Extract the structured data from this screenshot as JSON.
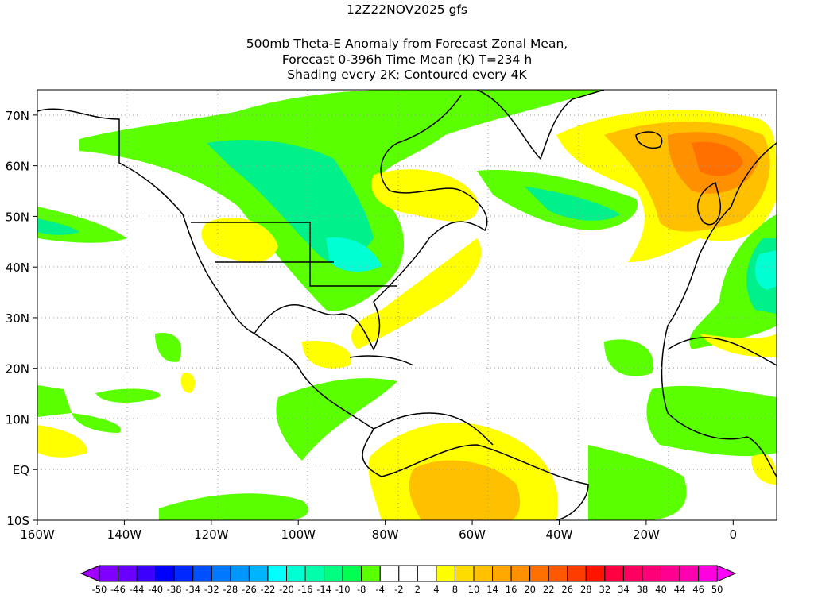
{
  "title": {
    "line1": "12Z22NOV2025 gfs",
    "line2": "500mb Theta-E Anomaly from Forecast Zonal Mean,",
    "line3": "Forecast 0-396h Time Mean (K) T=234 h",
    "line4": "Shading every 2K; Contoured every 4K"
  },
  "axes": {
    "lat_labels": [
      "70N",
      "60N",
      "50N",
      "40N",
      "30N",
      "20N",
      "10N",
      "EQ",
      "10S"
    ],
    "lat_values": [
      70,
      60,
      50,
      40,
      30,
      20,
      10,
      0,
      -10
    ],
    "lon_labels": [
      "160W",
      "140W",
      "120W",
      "100W",
      "80W",
      "60W",
      "40W",
      "20W",
      "0"
    ],
    "lon_values": [
      -160,
      -140,
      -120,
      -100,
      -80,
      -60,
      -40,
      -20,
      0
    ],
    "lat_range": [
      -10,
      75
    ],
    "lon_range": [
      -160,
      10
    ]
  },
  "colorbar": {
    "labels": [
      "-50",
      "-46",
      "-44",
      "-40",
      "-38",
      "-34",
      "-32",
      "-28",
      "-26",
      "-22",
      "-20",
      "-16",
      "-14",
      "-10",
      "-8",
      "-4",
      "-2",
      "2",
      "4",
      "8",
      "10",
      "14",
      "16",
      "20",
      "22",
      "26",
      "28",
      "32",
      "34",
      "38",
      "40",
      "44",
      "46",
      "50"
    ],
    "colors": [
      "#7f00ff",
      "#6a00ff",
      "#3c00ff",
      "#0000ff",
      "#0028ff",
      "#0050ff",
      "#0078ff",
      "#0096ff",
      "#00b4ff",
      "#00ffff",
      "#00ffd2",
      "#00ffaa",
      "#00ff80",
      "#00ff50",
      "#5aff00",
      "#ffffff",
      "#ffffff",
      "#ffffff",
      "#ffff00",
      "#ffdc00",
      "#ffc000",
      "#ffa800",
      "#ff9000",
      "#ff7000",
      "#ff5800",
      "#ff3c00",
      "#ff1400",
      "#ff0040",
      "#ff0060",
      "#ff0078",
      "#ff0090",
      "#ff00b0",
      "#ff00e0"
    ],
    "low_color": "#a000ff",
    "high_color": "#ff00ff"
  }
}
